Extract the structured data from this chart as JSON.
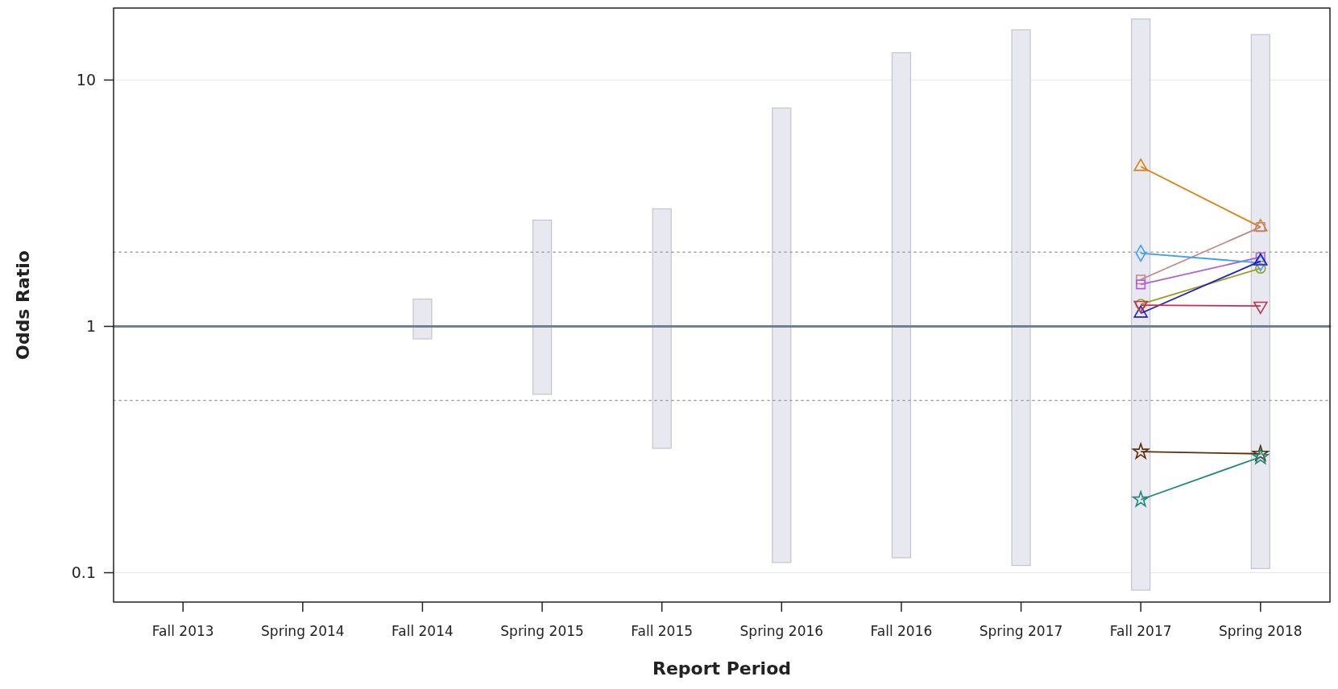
{
  "chart_data": {
    "type": "line",
    "xlabel": "Report Period",
    "ylabel": "Odds Ratio",
    "log": "y",
    "ylim": [
      0.076,
      19.6
    ],
    "yticks": [
      0.1,
      1,
      10
    ],
    "grid": "y",
    "categories": [
      "Fall 2013",
      "Spring 2014",
      "Fall 2014",
      "Spring 2015",
      "Fall 2015",
      "Spring 2016",
      "Fall 2016",
      "Spring 2017",
      "Fall 2017",
      "Spring 2018"
    ],
    "ref_lines": [
      {
        "axis": "y",
        "value": 1,
        "color": "#708090",
        "line_style": "solid"
      },
      {
        "axis": "y",
        "value": 2,
        "color": "#a0a0a0",
        "line_style": "dotted"
      },
      {
        "axis": "y",
        "value": 0.5,
        "color": "#a0a0a0",
        "line_style": "dotted"
      }
    ],
    "series": [
      {
        "type": "bar",
        "color": "#e8e8f0",
        "base": [
          null,
          null,
          0.89,
          0.53,
          0.32,
          0.11,
          0.115,
          0.107,
          0.085,
          0.104
        ],
        "values": [
          null,
          null,
          0.4,
          2.17,
          2.68,
          7.59,
          12.785,
          15.893,
          17.615,
          15.196
        ]
      },
      {
        "color": "#d9800f",
        "marker": "triangle",
        "values": [
          null,
          null,
          null,
          null,
          null,
          null,
          null,
          null,
          4.45,
          2.53
        ]
      },
      {
        "color": "#c08888",
        "marker": "square",
        "values": [
          null,
          null,
          null,
          null,
          null,
          null,
          null,
          null,
          1.55,
          2.53
        ]
      },
      {
        "color": "#b060d0",
        "marker": "square",
        "values": [
          null,
          null,
          null,
          null,
          null,
          null,
          null,
          null,
          1.48,
          1.91
        ]
      },
      {
        "color": "#3aa0f0",
        "marker": "diamond",
        "values": [
          null,
          null,
          null,
          null,
          null,
          null,
          null,
          null,
          1.98,
          1.81
        ]
      },
      {
        "color": "#9aa020",
        "marker": "circle",
        "values": [
          null,
          null,
          null,
          null,
          null,
          null,
          null,
          null,
          1.23,
          1.72
        ]
      },
      {
        "color": "#2020c0",
        "marker": "triangle",
        "values": [
          null,
          null,
          null,
          null,
          null,
          null,
          null,
          null,
          1.13,
          1.84
        ]
      },
      {
        "color": "#c03050",
        "marker": "triangle-down",
        "values": [
          null,
          null,
          null,
          null,
          null,
          null,
          null,
          null,
          1.22,
          1.21
        ]
      },
      {
        "color": "#5a3008",
        "marker": "star",
        "values": [
          null,
          null,
          null,
          null,
          null,
          null,
          null,
          null,
          0.31,
          0.304
        ]
      },
      {
        "color": "#208878",
        "marker": "star",
        "values": [
          null,
          null,
          null,
          null,
          null,
          null,
          null,
          null,
          0.198,
          0.295
        ]
      }
    ]
  }
}
